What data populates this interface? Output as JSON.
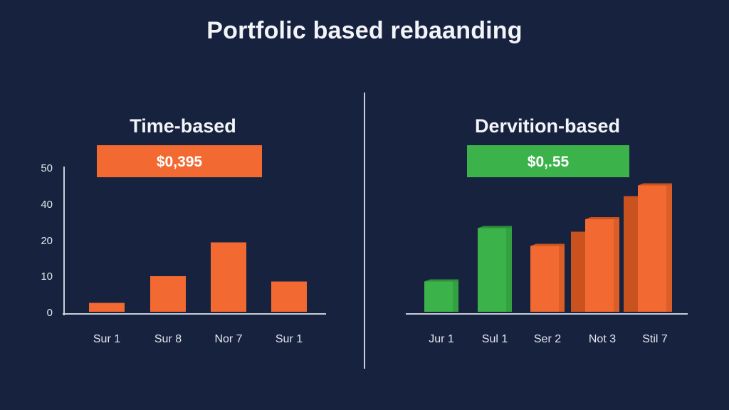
{
  "title": "Portfolic based rebaanding",
  "colors": {
    "background": "#17223f",
    "orange": "#f26a32",
    "orange_side": "#c9521f",
    "green": "#3cb34a",
    "green_side": "#2e9139",
    "axis": "#c9ced8"
  },
  "chart_data": [
    {
      "type": "bar",
      "title": "Time-based",
      "badge": "$0,395",
      "badge_color": "#f26a32",
      "y_ticks": [
        "0",
        "10",
        "20",
        "40",
        "50"
      ],
      "ylim": [
        0,
        40
      ],
      "categories": [
        "Sur 1",
        "Sur 8",
        "Nor 7",
        "Sur 1"
      ],
      "values": [
        2.5,
        10,
        19.5,
        8.5
      ],
      "bar_colors": [
        "#f26a32",
        "#f26a32",
        "#f26a32",
        "#f26a32"
      ]
    },
    {
      "type": "bar",
      "title": "Dervition-based",
      "badge": "$0,.55",
      "badge_color": "#3cb34a",
      "ylim": [
        0,
        40
      ],
      "categories": [
        "Jur 1",
        "Sul 1",
        "Ser 2",
        "Not 3",
        "Stil 7"
      ],
      "values": [
        8.5,
        23.5,
        18.5,
        26,
        35.5
      ],
      "back_values": [
        null,
        null,
        null,
        22.5,
        32.5
      ],
      "bar_colors": [
        "#3cb34a",
        "#3cb34a",
        "#f26a32",
        "#f26a32",
        "#f26a32"
      ]
    }
  ]
}
